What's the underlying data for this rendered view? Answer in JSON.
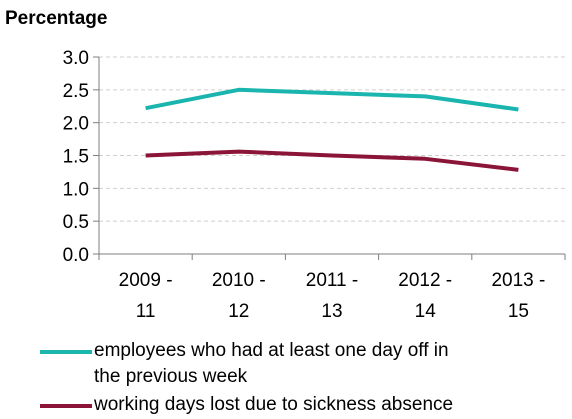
{
  "chart_data": {
    "type": "line",
    "title": "",
    "ylabel": "Percentage",
    "xlabel": "",
    "ylim": [
      0,
      3.0
    ],
    "yticks": [
      "0.0",
      "0.5",
      "1.0",
      "1.5",
      "2.0",
      "2.5",
      "3.0"
    ],
    "categories": [
      [
        "2009 -",
        "11"
      ],
      [
        "2010 -",
        "12"
      ],
      [
        "2011 -",
        "13"
      ],
      [
        "2012 -",
        "14"
      ],
      [
        "2013 -",
        "15"
      ]
    ],
    "series": [
      {
        "name": "employees who had at least one day off in the previous week",
        "name_lines": [
          "employees who had at least one day off in",
          "the previous week"
        ],
        "color": "#1ab5ae",
        "values": [
          2.22,
          2.5,
          2.45,
          2.4,
          2.2
        ]
      },
      {
        "name": "working days lost due to sickness absence",
        "name_lines": [
          "working days lost due to sickness absence"
        ],
        "color": "#8b1538",
        "values": [
          1.5,
          1.56,
          1.5,
          1.45,
          1.28
        ]
      }
    ],
    "grid": true,
    "legend_position": "bottom"
  }
}
